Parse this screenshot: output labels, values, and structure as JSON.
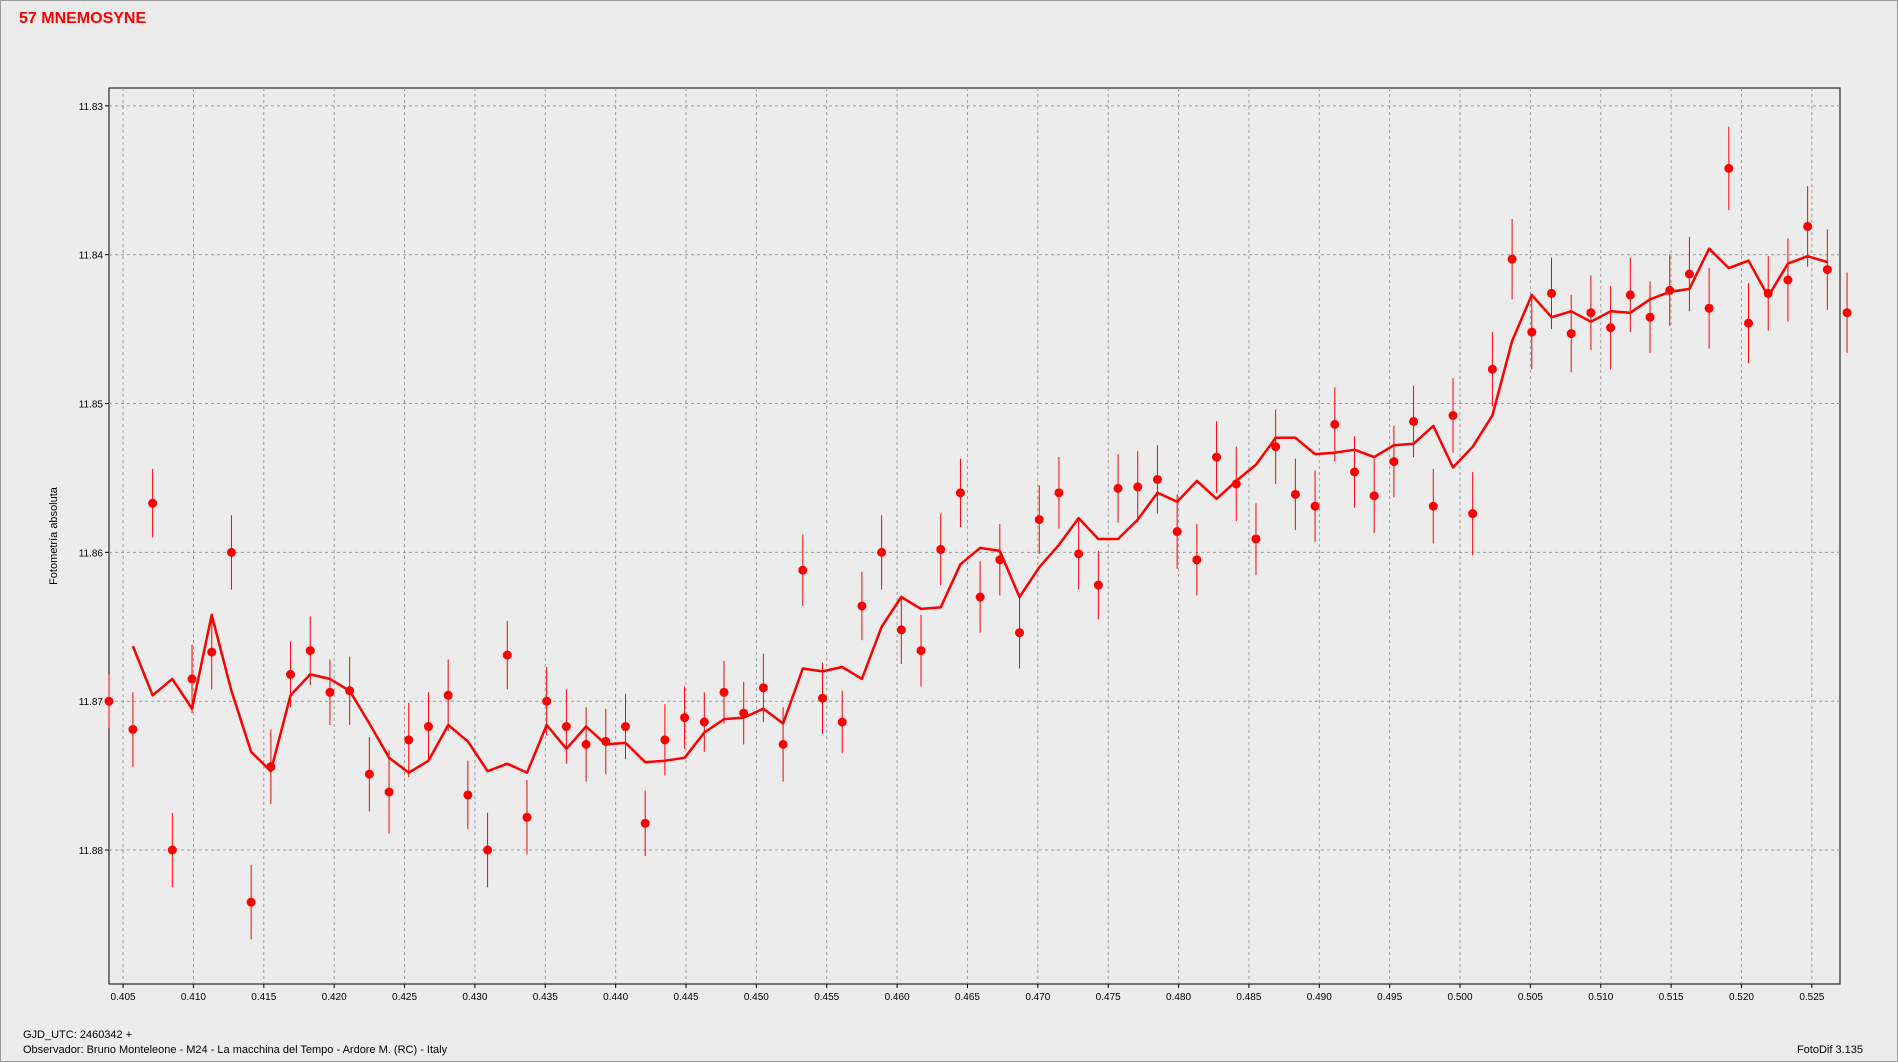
{
  "header": {
    "title": "57 MNEMOSYNE"
  },
  "footer": {
    "jd_label": "GJD_UTC: 2460342 +",
    "observer": "Observador: Bruno Monteleone - M24 - La macchina del Tempo - Ardore M. (RC) - Italy",
    "software": "FotoDif 3.135"
  },
  "colors": {
    "series": "#ff0000",
    "background": "#ececec",
    "grid": "#9a9a9a"
  },
  "chart_data": {
    "type": "scatter",
    "title": "57 MNEMOSYNE",
    "xlabel": "GJD_UTC: 2460342 +",
    "ylabel": "Fotometría absoluta",
    "xlim": [
      0.404,
      0.527
    ],
    "ylim": [
      11.8288,
      11.889
    ],
    "y_inverted": true,
    "grid": true,
    "x_ticks": [
      "0.405",
      "0.410",
      "0.415",
      "0.420",
      "0.425",
      "0.430",
      "0.435",
      "0.440",
      "0.445",
      "0.450",
      "0.455",
      "0.460",
      "0.465",
      "0.470",
      "0.475",
      "0.480",
      "0.485",
      "0.490",
      "0.495",
      "0.500",
      "0.505",
      "0.510",
      "0.515",
      "0.520",
      "0.525"
    ],
    "y_ticks": [
      "11.83",
      "11.84",
      "11.85",
      "11.86",
      "11.87",
      "11.88"
    ],
    "series": [
      {
        "kind": "points_with_error",
        "x": [
          0.404,
          0.4057,
          0.4071,
          0.4085,
          0.4099,
          0.4113,
          0.4127,
          0.4141,
          0.4155,
          0.4169,
          0.4183,
          0.4197,
          0.4211,
          0.4225,
          0.4239,
          0.4253,
          0.4267,
          0.4281,
          0.4295,
          0.4309,
          0.4323,
          0.4337,
          0.4351,
          0.4365,
          0.4379,
          0.4393,
          0.4407,
          0.4421,
          0.4435,
          0.4449,
          0.4463,
          0.4477,
          0.4491,
          0.4505,
          0.4519,
          0.4533,
          0.4547,
          0.4561,
          0.4575,
          0.4589,
          0.4603,
          0.4617,
          0.4631,
          0.4645,
          0.4659,
          0.4673,
          0.4687,
          0.4701,
          0.4715,
          0.4729,
          0.4743,
          0.4757,
          0.4771,
          0.4785,
          0.4799,
          0.4813,
          0.4827,
          0.4841,
          0.4855,
          0.4869,
          0.4883,
          0.4897,
          0.4911,
          0.4925,
          0.4939,
          0.4953,
          0.4967,
          0.4981,
          0.4995,
          0.5009,
          0.5023,
          0.5037,
          0.5051,
          0.5065,
          0.5079,
          0.5093,
          0.5107,
          0.5121,
          0.5135,
          0.5149,
          0.5163,
          0.5177,
          0.5191,
          0.5205,
          0.5219,
          0.5233,
          0.5247,
          0.5261,
          0.5275
        ],
        "y": [
          11.87,
          11.8719,
          11.8567,
          11.88,
          11.8685,
          11.8667,
          11.86,
          11.8835,
          11.8744,
          11.8682,
          11.8666,
          11.8694,
          11.8693,
          11.8749,
          11.8761,
          11.8726,
          11.8717,
          11.8696,
          11.8763,
          11.88,
          11.8669,
          11.8778,
          11.87,
          11.8717,
          11.8729,
          11.8727,
          11.8717,
          11.8782,
          11.8726,
          11.8711,
          11.8714,
          11.8694,
          11.8708,
          11.8691,
          11.8729,
          11.8612,
          11.8698,
          11.8714,
          11.8636,
          11.86,
          11.8652,
          11.8666,
          11.8598,
          11.856,
          11.863,
          11.8605,
          11.8654,
          11.8578,
          11.856,
          11.8601,
          11.8622,
          11.8557,
          11.8556,
          11.8551,
          11.8586,
          11.8605,
          11.8536,
          11.8554,
          11.8591,
          11.8529,
          11.8561,
          11.8569,
          11.8514,
          11.8546,
          11.8562,
          11.8539,
          11.8512,
          11.8569,
          11.8508,
          11.8574,
          11.8477,
          11.8403,
          11.8452,
          11.8426,
          11.8453,
          11.8439,
          11.8449,
          11.8427,
          11.8442,
          11.8424,
          11.8413,
          11.8436,
          11.8342,
          11.8446,
          11.8426,
          11.8417,
          11.8381,
          11.841,
          11.8439
        ],
        "err": [
          0.0018,
          0.0025,
          0.0023,
          0.0025,
          0.0023,
          0.0025,
          0.0025,
          0.0025,
          0.0025,
          0.0022,
          0.0023,
          0.0022,
          0.0023,
          0.0025,
          0.0028,
          0.0025,
          0.0023,
          0.0024,
          0.0023,
          0.0025,
          0.0023,
          0.0025,
          0.0023,
          0.0025,
          0.0025,
          0.0022,
          0.0022,
          0.0022,
          0.0024,
          0.0021,
          0.002,
          0.0021,
          0.0021,
          0.0023,
          0.0025,
          0.0024,
          0.0024,
          0.0021,
          0.0023,
          0.0025,
          0.0023,
          0.0024,
          0.0024,
          0.0023,
          0.0024,
          0.0024,
          0.0024,
          0.0023,
          0.0024,
          0.0024,
          0.0023,
          0.0023,
          0.0024,
          0.0023,
          0.0025,
          0.0024,
          0.0024,
          0.0025,
          0.0024,
          0.0025,
          0.0024,
          0.0024,
          0.0025,
          0.0024,
          0.0025,
          0.0024,
          0.0024,
          0.0025,
          0.0025,
          0.0028,
          0.0025,
          0.0027,
          0.0025,
          0.0024,
          0.0026,
          0.0025,
          0.0028,
          0.0025,
          0.0024,
          0.0024,
          0.0025,
          0.0027,
          0.0028,
          0.0027,
          0.0025,
          0.0028,
          0.0027,
          0.0027,
          0.0027
        ]
      },
      {
        "kind": "smoothed_line",
        "x": [
          0.4057,
          0.4071,
          0.4085,
          0.4099,
          0.4113,
          0.4127,
          0.4141,
          0.4155,
          0.4169,
          0.4183,
          0.4197,
          0.4211,
          0.4225,
          0.4239,
          0.4253,
          0.4267,
          0.4281,
          0.4295,
          0.4309,
          0.4323,
          0.4337,
          0.4351,
          0.4365,
          0.4379,
          0.4393,
          0.4407,
          0.4421,
          0.4435,
          0.4449,
          0.4463,
          0.4477,
          0.4491,
          0.4505,
          0.4519,
          0.4533,
          0.4547,
          0.4561,
          0.4575,
          0.4589,
          0.4603,
          0.4617,
          0.4631,
          0.4645,
          0.4659,
          0.4673,
          0.4687,
          0.4701,
          0.4715,
          0.4729,
          0.4743,
          0.4757,
          0.4771,
          0.4785,
          0.4799,
          0.4813,
          0.4827,
          0.4841,
          0.4855,
          0.4869,
          0.4883,
          0.4897,
          0.4911,
          0.4925,
          0.4939,
          0.4953,
          0.4967,
          0.4981,
          0.4995,
          0.5009,
          0.5023,
          0.5037,
          0.5051,
          0.5065,
          0.5079,
          0.5093,
          0.5107,
          0.5121,
          0.5135,
          0.5149,
          0.5163,
          0.5177,
          0.5191,
          0.5205,
          0.5219,
          0.5233,
          0.5247,
          0.5261
        ],
        "y": [
          11.8663,
          11.8696,
          11.8685,
          11.8705,
          11.8642,
          11.8693,
          11.8734,
          11.8747,
          11.8696,
          11.8682,
          11.8685,
          11.8693,
          11.8715,
          11.8738,
          11.8748,
          11.874,
          11.8716,
          11.8727,
          11.8747,
          11.8742,
          11.8748,
          11.8716,
          11.8732,
          11.8717,
          11.8729,
          11.8728,
          11.8741,
          11.874,
          11.8738,
          11.8721,
          11.8712,
          11.8711,
          11.8705,
          11.8715,
          11.8678,
          11.868,
          11.8677,
          11.8685,
          11.865,
          11.863,
          11.8638,
          11.8637,
          11.8608,
          11.8597,
          11.8599,
          11.863,
          11.861,
          11.8595,
          11.8577,
          11.8591,
          11.8591,
          11.8578,
          11.856,
          11.8566,
          11.8552,
          11.8564,
          11.8552,
          11.8541,
          11.8523,
          11.8523,
          11.8534,
          11.8533,
          11.8531,
          11.8536,
          11.8528,
          11.8527,
          11.8515,
          11.8543,
          11.8529,
          11.8508,
          11.8458,
          11.8427,
          11.8442,
          11.8438,
          11.8445,
          11.8438,
          11.8439,
          11.843,
          11.8425,
          11.8423,
          11.8396,
          11.8409,
          11.8404,
          11.8428,
          11.8406,
          11.8401,
          11.8405
        ]
      }
    ]
  }
}
